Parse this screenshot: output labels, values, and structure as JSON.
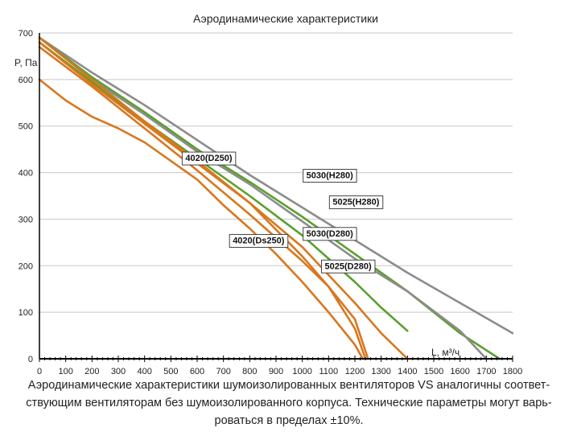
{
  "chart_data": {
    "type": "line",
    "title": "Аэродинамические характеристики",
    "xlabel": "L, м³/ч",
    "ylabel": "P, Па",
    "xlim": [
      0,
      1800
    ],
    "ylim": [
      0,
      700
    ],
    "x_ticks": [
      0,
      100,
      200,
      300,
      400,
      500,
      600,
      700,
      800,
      900,
      1000,
      1100,
      1200,
      1300,
      1400,
      1500,
      1600,
      1700,
      1800
    ],
    "x_tick_labels": [
      "0",
      "100",
      "200",
      "300",
      "400",
      "500",
      "600",
      "700",
      "800",
      "900",
      "1000",
      "1100",
      "1200",
      "1300",
      "1400",
      "1500",
      "1600",
      "1700",
      "1800"
    ],
    "y_ticks": [
      0,
      100,
      200,
      300,
      400,
      500,
      600,
      700
    ],
    "y_tick_labels": [
      "0",
      "100",
      "200",
      "300",
      "400",
      "500",
      "600",
      "700"
    ],
    "grid": true,
    "legend": "inline labels",
    "colors": {
      "gray": "#8c8c8c",
      "green": "#5aa02c",
      "orange": "#d9771e",
      "grid": "#c8c8c8",
      "axis": "#000000"
    },
    "series": [
      {
        "name": "5030(H280)",
        "color": "gray",
        "x": [
          0,
          200,
          400,
          600,
          800,
          1000,
          1200,
          1400,
          1600,
          1800
        ],
        "y": [
          690,
          615,
          545,
          470,
          395,
          325,
          255,
          185,
          120,
          55
        ]
      },
      {
        "name": "5025(H280)",
        "color": "green",
        "x": [
          0,
          200,
          400,
          600,
          800,
          1000,
          1200,
          1400,
          1500,
          1600,
          1750
        ],
        "y": [
          690,
          605,
          530,
          450,
          380,
          305,
          225,
          145,
          100,
          55,
          0
        ]
      },
      {
        "name": "",
        "color": "gray",
        "x": [
          0,
          200,
          400,
          600,
          800,
          1000,
          1200,
          1400,
          1600,
          1700
        ],
        "y": [
          690,
          600,
          525,
          445,
          375,
          295,
          215,
          145,
          60,
          0
        ]
      },
      {
        "name": "",
        "color": "green",
        "x": [
          0,
          200,
          400,
          600,
          800,
          1000,
          1200,
          1300,
          1400
        ],
        "y": [
          680,
          595,
          510,
          430,
          350,
          265,
          165,
          110,
          60
        ]
      },
      {
        "name": "5030(D280)",
        "color": "orange",
        "x": [
          0,
          200,
          400,
          600,
          800,
          1000,
          1100,
          1200,
          1300,
          1400
        ],
        "y": [
          680,
          590,
          505,
          420,
          335,
          240,
          180,
          120,
          55,
          0
        ]
      },
      {
        "name": "5025(D280)",
        "color": "orange",
        "x": [
          0,
          200,
          400,
          600,
          800,
          1000,
          1100,
          1200,
          1250
        ],
        "y": [
          670,
          585,
          495,
          405,
          310,
          210,
          155,
          85,
          0
        ]
      },
      {
        "name": "4020(D250)",
        "color": "orange",
        "x": [
          0,
          200,
          400,
          600,
          800,
          1000,
          1100,
          1200,
          1240
        ],
        "y": [
          690,
          600,
          510,
          425,
          335,
          220,
          155,
          65,
          0
        ]
      },
      {
        "name": "4020(Ds250)",
        "color": "orange",
        "x": [
          0,
          100,
          200,
          300,
          400,
          500,
          600,
          700,
          800,
          900,
          1000,
          1100,
          1200,
          1230
        ],
        "y": [
          600,
          555,
          520,
          495,
          465,
          425,
          385,
          330,
          280,
          225,
          165,
          100,
          30,
          0
        ]
      }
    ],
    "annotations": [
      {
        "text": "5030(H280)",
        "x": 1000,
        "y": 395
      },
      {
        "text": "5025(H280)",
        "x": 1100,
        "y": 338
      },
      {
        "text": "4020(D250)",
        "x": 540,
        "y": 432
      },
      {
        "text": "5030(D280)",
        "x": 1000,
        "y": 270
      },
      {
        "text": "4020(Ds250)",
        "x": 720,
        "y": 255
      },
      {
        "text": "5025(D280)",
        "x": 1070,
        "y": 200
      }
    ]
  },
  "caption": {
    "line1": "Аэродинамические характеристики шумоизолированных вентиляторов VS аналогичны соответ-",
    "line2": "ствующим вентиляторам без шумоизолированного корпуса. Технические параметры могут варь-",
    "line3": "роваться в пределах ±10%."
  }
}
